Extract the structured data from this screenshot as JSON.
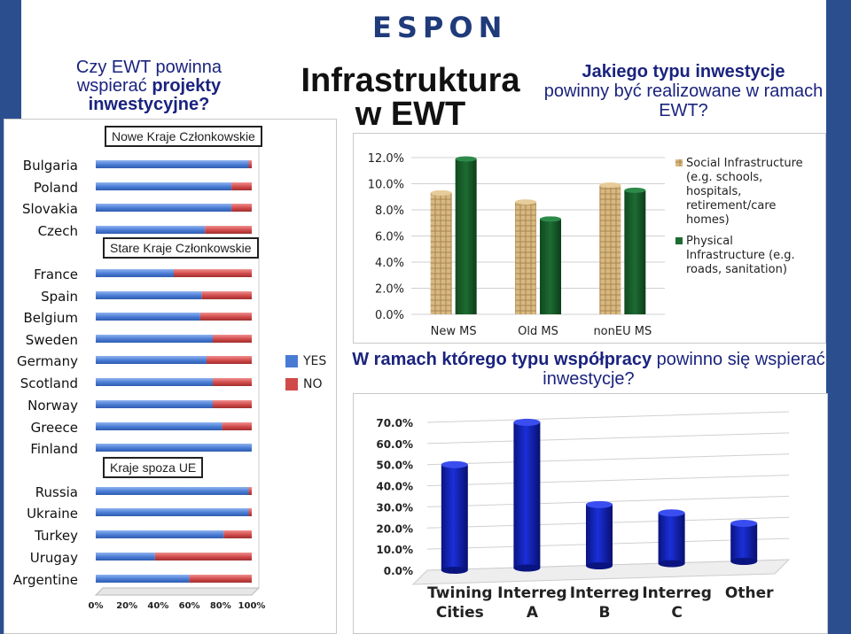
{
  "header": {
    "logo_text": "ESPON"
  },
  "titles": {
    "left_line1": "Czy EWT powinna",
    "left_line2": "wspierać ",
    "left_bold": "projekty inwestycyjne?",
    "middle_line1": "Infrastruktura",
    "middle_line2": "w EWT",
    "right_bold": "Jakiego typu inwestycje",
    "right_rest": "powinny być realizowane w ramach EWT?",
    "bottom_bold": "W ramach którego typu współpracy",
    "bottom_rest": " powinno się wspierać inwestycje?"
  },
  "group_labels": {
    "new_members": "Nowe Kraje Członkowskie",
    "old_members": "Stare Kraje Członkowskie",
    "non_eu": "Kraje spoza UE"
  },
  "colors": {
    "yes": "#4a7bd4",
    "no": "#d04a4a",
    "green": "#1e6b32",
    "wicker": "#d8b882",
    "blue_cyl": "#1a2fd8",
    "title_blue": "#1a237e"
  },
  "chart_data": [
    {
      "type": "bar",
      "orientation": "horizontal-stacked",
      "categories": [
        "Bulgaria",
        "Poland",
        "Slovakia",
        "Czech",
        "France",
        "Spain",
        "Belgium",
        "Sweden",
        "Germany",
        "Scotland",
        "Norway",
        "Greece",
        "Finland",
        "Russia",
        "Ukraine",
        "Turkey",
        "Urugay",
        "Argentine"
      ],
      "series": [
        {
          "name": "YES",
          "values": [
            98,
            87,
            87,
            70,
            50,
            68,
            67,
            75,
            71,
            75,
            75,
            81,
            100,
            98,
            98,
            82,
            38,
            60
          ]
        },
        {
          "name": "NO",
          "values": [
            2,
            13,
            13,
            30,
            50,
            32,
            33,
            25,
            29,
            25,
            25,
            19,
            0,
            2,
            2,
            18,
            62,
            40
          ]
        }
      ],
      "x_ticks": [
        "0%",
        "20%",
        "40%",
        "60%",
        "80%",
        "100%"
      ],
      "xlim": [
        0,
        100
      ]
    },
    {
      "type": "bar",
      "categories": [
        "New MS",
        "Old MS",
        "nonEU MS"
      ],
      "series": [
        {
          "name": "Social Infrastructure (e.g. schools, hospitals, retirement/care homes)",
          "values": [
            9.3,
            8.6,
            9.9
          ]
        },
        {
          "name": "Physical Infrastructure (e.g. roads, sanitation)",
          "values": [
            11.9,
            7.3,
            9.5
          ]
        }
      ],
      "legend_lines": [
        [
          "Social Infrastructure",
          "(e.g. schools,",
          "hospitals,",
          "retirement/care",
          "homes)"
        ],
        [
          "Physical",
          "Infrastructure (e.g.",
          "roads, sanitation)"
        ]
      ],
      "y_ticks": [
        "0.0%",
        "2.0%",
        "4.0%",
        "6.0%",
        "8.0%",
        "10.0%",
        "12.0%"
      ],
      "ylim": [
        0,
        12
      ],
      "legend": "right"
    },
    {
      "type": "bar",
      "categories": [
        "Twining Cities",
        "Interreg A",
        "Interreg B",
        "Interreg C",
        "Other"
      ],
      "category_lines": [
        [
          "Twining",
          "Cities"
        ],
        [
          "Interreg",
          "A"
        ],
        [
          "Interreg",
          "B"
        ],
        [
          "Interreg",
          "C"
        ],
        [
          "Other",
          ""
        ]
      ],
      "values": [
        50.0,
        69.0,
        29.0,
        24.0,
        18.0
      ],
      "y_ticks": [
        "0.0%",
        "10.0%",
        "20.0%",
        "30.0%",
        "40.0%",
        "50.0%",
        "60.0%",
        "70.0%"
      ],
      "ylim": [
        0,
        70
      ]
    }
  ]
}
